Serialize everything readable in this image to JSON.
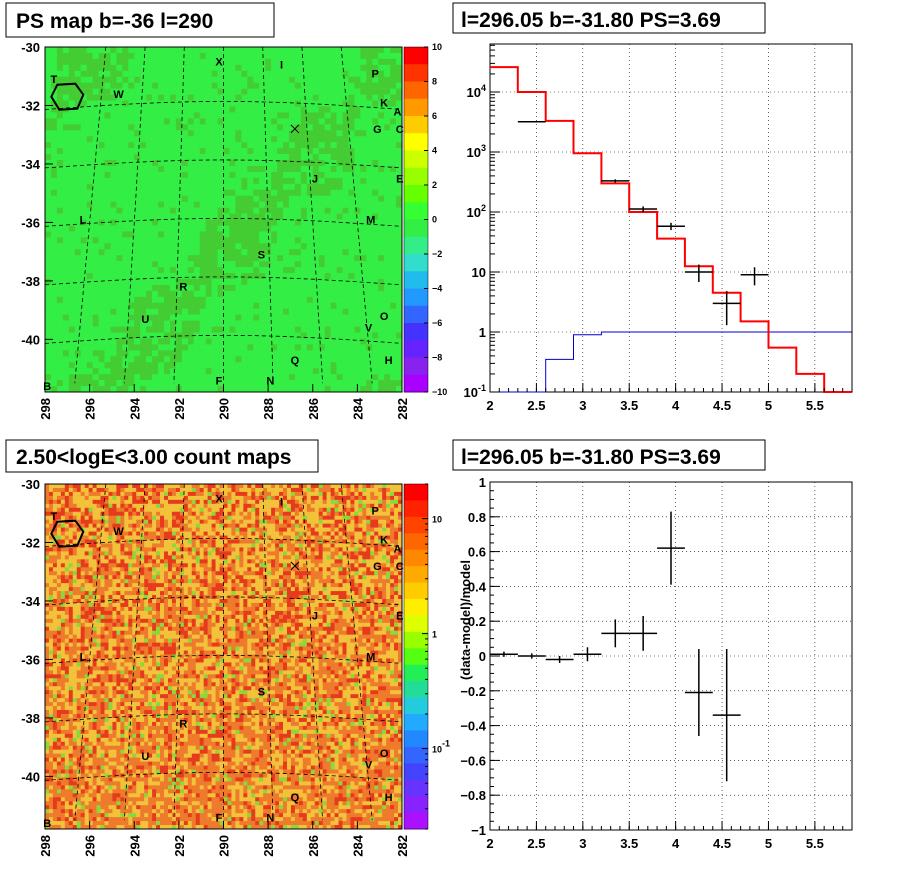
{
  "chart_data": [
    {
      "type": "heatmap",
      "title": "PS map b=-36 l=290",
      "x_ticks": [
        "298",
        "296",
        "294",
        "292",
        "290",
        "288",
        "286",
        "284",
        "282"
      ],
      "y_ticks": [
        "-30",
        "-32",
        "-34",
        "-36",
        "-38",
        "-40"
      ],
      "colorbar_ticks": [
        "10",
        "8",
        "6",
        "4",
        "2",
        "0",
        "−2",
        "−4",
        "−6",
        "−8",
        "−10"
      ],
      "colorbar_range": [
        -10,
        10
      ],
      "colors": {
        "background": "#33ee44",
        "dark": "#44cc33"
      },
      "source_labels": [
        {
          "label": "T",
          "l": 297.6,
          "b": -31.1
        },
        {
          "label": "W",
          "l": 294.7,
          "b": -31.6
        },
        {
          "label": "X",
          "l": 290.2,
          "b": -30.5
        },
        {
          "label": "I",
          "l": 287.4,
          "b": -30.6
        },
        {
          "label": "P",
          "l": 283.2,
          "b": -30.9
        },
        {
          "label": "K",
          "l": 282.8,
          "b": -31.9
        },
        {
          "label": "A",
          "l": 282.2,
          "b": -32.2
        },
        {
          "label": "G",
          "l": 283.1,
          "b": -32.8
        },
        {
          "label": "C",
          "l": 282.1,
          "b": -32.8
        },
        {
          "label": "E",
          "l": 282.1,
          "b": -34.5
        },
        {
          "label": "J",
          "l": 285.9,
          "b": -34.5
        },
        {
          "label": "M",
          "l": 283.4,
          "b": -35.9
        },
        {
          "label": "L",
          "l": 296.3,
          "b": -35.9
        },
        {
          "label": "S",
          "l": 288.3,
          "b": -37.1
        },
        {
          "label": "R",
          "l": 291.8,
          "b": -38.2
        },
        {
          "label": "U",
          "l": 293.5,
          "b": -39.3
        },
        {
          "label": "O",
          "l": 282.8,
          "b": -39.2
        },
        {
          "label": "V",
          "l": 283.5,
          "b": -39.6
        },
        {
          "label": "Q",
          "l": 286.8,
          "b": -40.7
        },
        {
          "label": "H",
          "l": 282.6,
          "b": -40.7
        },
        {
          "label": "F",
          "l": 290.2,
          "b": -41.4
        },
        {
          "label": "N",
          "l": 287.9,
          "b": -41.4
        },
        {
          "label": "B",
          "l": 297.9,
          "b": -41.6
        }
      ],
      "cross_marker": {
        "l": 286.8,
        "b": -32.8
      },
      "circle_marker": {
        "l": 297.0,
        "b": -31.7
      }
    },
    {
      "type": "bar",
      "title": "l=296.05 b=-31.80 PS=3.69",
      "x_ticks": [
        "2",
        "2.5",
        "3",
        "3.5",
        "4",
        "4.5",
        "5",
        "5.5"
      ],
      "y_ticks": [
        "10^-1",
        "1",
        "10",
        "10^2",
        "10^3",
        "10^4"
      ],
      "xlim": [
        2,
        5.9
      ],
      "ylim_log10": [
        -1,
        4.8
      ],
      "model_edges": [
        2,
        2.3,
        2.6,
        2.9,
        3.2,
        3.5,
        3.8,
        4.1,
        4.4,
        4.7,
        5.0,
        5.3,
        5.6,
        5.9
      ],
      "model_values": [
        26000,
        10000,
        3300,
        950,
        300,
        100,
        36,
        12.5,
        4.5,
        1.5,
        0.55,
        0.2,
        0.08
      ],
      "exposure_edges": [
        2,
        2.3,
        2.6,
        2.9,
        3.2,
        5.9
      ],
      "exposure_values": [
        0.1,
        0.1,
        0.35,
        0.9,
        1.0
      ],
      "data_points": [
        {
          "x": 2.45,
          "y": 3200,
          "xerr": 0.15,
          "ylo": 3150,
          "yhi": 3250
        },
        {
          "x": 3.35,
          "y": 330,
          "xerr": 0.15,
          "ylo": 310,
          "yhi": 350
        },
        {
          "x": 3.65,
          "y": 112,
          "xerr": 0.15,
          "ylo": 100,
          "yhi": 124
        },
        {
          "x": 3.95,
          "y": 58,
          "xerr": 0.15,
          "ylo": 50,
          "yhi": 66
        },
        {
          "x": 4.25,
          "y": 10,
          "xerr": 0.15,
          "ylo": 6.8,
          "yhi": 13.3
        },
        {
          "x": 4.55,
          "y": 3.0,
          "xerr": 0.15,
          "ylo": 1.3,
          "yhi": 4.8
        },
        {
          "x": 4.85,
          "y": 9.0,
          "xerr": 0.15,
          "ylo": 6.0,
          "yhi": 12.0
        }
      ],
      "colors": {
        "model": "#ff0000",
        "exposure": "#0000cc",
        "data": "#000000"
      }
    },
    {
      "type": "heatmap",
      "title": "2.50<logE<3.00 count maps",
      "x_ticks": [
        "298",
        "296",
        "294",
        "292",
        "290",
        "288",
        "286",
        "284",
        "282"
      ],
      "y_ticks": [
        "-30",
        "-32",
        "-34",
        "-36",
        "-38",
        "-40"
      ],
      "colorbar_ticks": [
        {
          "label": "10",
          "value": 10
        },
        {
          "label": "1",
          "value": 1
        },
        {
          "label": "10^-1",
          "value": 0.1
        }
      ],
      "colors": {
        "base": "#ee7a2c",
        "light": "#f2c23a",
        "red": "#e73a1c",
        "green": "#8bd83a"
      }
    },
    {
      "type": "scatter",
      "title": "l=296.05 b=-31.80 PS=3.69",
      "ylabel": "(data-model)/model",
      "x_ticks": [
        "2",
        "2.5",
        "3",
        "3.5",
        "4",
        "4.5",
        "5",
        "5.5"
      ],
      "y_ticks": [
        "1",
        "0.8",
        "0.6",
        "0.4",
        "0.2",
        "0",
        "−0.2",
        "−0.4",
        "−0.6",
        "−0.8",
        "−1"
      ],
      "xlim": [
        2,
        5.9
      ],
      "ylim": [
        -1,
        1
      ],
      "points": [
        {
          "x": 2.15,
          "y": 0.01,
          "xerr": 0.15,
          "yerr": 0.015
        },
        {
          "x": 2.45,
          "y": 0.0,
          "xerr": 0.15,
          "yerr": 0.015
        },
        {
          "x": 2.75,
          "y": -0.02,
          "xerr": 0.15,
          "yerr": 0.02
        },
        {
          "x": 3.05,
          "y": 0.01,
          "xerr": 0.15,
          "yerr": 0.04
        },
        {
          "x": 3.35,
          "y": 0.13,
          "xerr": 0.15,
          "yerr": 0.08
        },
        {
          "x": 3.65,
          "y": 0.13,
          "xerr": 0.15,
          "yerr": 0.1
        },
        {
          "x": 3.95,
          "y": 0.62,
          "xerr": 0.15,
          "yerr": 0.21
        },
        {
          "x": 4.25,
          "y": -0.21,
          "xerr": 0.15,
          "yerr": 0.25
        },
        {
          "x": 4.55,
          "y": -0.34,
          "xerr": 0.15,
          "yerr": 0.38
        }
      ]
    }
  ]
}
